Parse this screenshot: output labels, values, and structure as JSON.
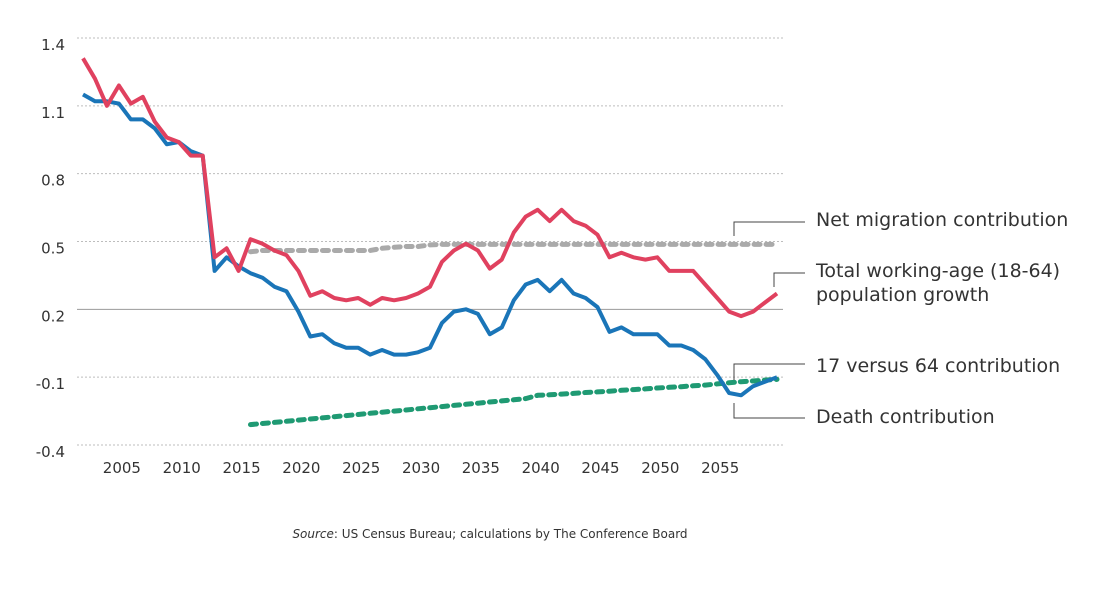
{
  "chart_data": {
    "type": "line",
    "title": "",
    "xlabel": "",
    "ylabel": "",
    "ylim": [
      -0.4,
      1.4
    ],
    "xlim": [
      2002,
      2060
    ],
    "yticks": [
      1.4,
      1.1,
      0.8,
      0.5,
      0.2,
      -0.1,
      -0.4
    ],
    "ytick_labels": [
      "1.4",
      "1.1",
      "0.8",
      "0.5",
      "0.2",
      "-0.1",
      "-0.4"
    ],
    "xticks": [
      2005,
      2010,
      2015,
      2020,
      2025,
      2030,
      2035,
      2040,
      2045,
      2050,
      2055
    ],
    "xtick_labels": [
      "2005",
      "2010",
      "2015",
      "2020",
      "2025",
      "2030",
      "2035",
      "2040",
      "2045",
      "2050",
      "2055"
    ],
    "grid": "horizontal dotted, solid at 0.2",
    "legend": "direct labels at right",
    "series": [
      {
        "name": "Total working-age (18-64) population growth",
        "color": "#e0415f",
        "style": "solid",
        "start_year": 2002,
        "values": [
          1.31,
          1.22,
          1.1,
          1.19,
          1.11,
          1.14,
          1.03,
          0.96,
          0.94,
          0.88,
          0.88,
          0.43,
          0.47,
          0.37,
          0.51,
          0.49,
          0.46,
          0.44,
          0.37,
          0.26,
          0.28,
          0.25,
          0.24,
          0.25,
          0.22,
          0.25,
          0.24,
          0.25,
          0.27,
          0.3,
          0.41,
          0.46,
          0.49,
          0.46,
          0.38,
          0.42,
          0.54,
          0.61,
          0.64,
          0.59,
          0.64,
          0.59,
          0.57,
          0.53,
          0.43,
          0.45,
          0.43,
          0.42,
          0.43,
          0.37,
          0.37,
          0.37,
          0.31,
          0.25,
          0.19,
          0.17,
          0.19,
          0.23,
          0.27
        ]
      },
      {
        "name": "Death contribution",
        "color": "#1a75b8",
        "style": "solid",
        "start_year": 2002,
        "values": [
          1.15,
          1.12,
          1.12,
          1.11,
          1.04,
          1.04,
          1.0,
          0.93,
          0.94,
          0.9,
          0.88,
          0.37,
          0.43,
          0.39,
          0.36,
          0.34,
          0.3,
          0.28,
          0.19,
          0.08,
          0.09,
          0.05,
          0.03,
          0.03,
          0.0,
          0.02,
          0.0,
          0.0,
          0.01,
          0.03,
          0.14,
          0.19,
          0.2,
          0.18,
          0.09,
          0.12,
          0.24,
          0.31,
          0.33,
          0.28,
          0.33,
          0.27,
          0.25,
          0.21,
          0.1,
          0.12,
          0.09,
          0.09,
          0.09,
          0.04,
          0.04,
          0.02,
          -0.02,
          -0.09,
          -0.17,
          -0.18,
          -0.14,
          -0.12,
          -0.1
        ]
      },
      {
        "name": "Net migration contribution",
        "color": "#aaaaaa",
        "style": "dashed",
        "start_year": 2016,
        "values": [
          0.455,
          0.46,
          0.46,
          0.46,
          0.46,
          0.46,
          0.46,
          0.46,
          0.46,
          0.46,
          0.46,
          0.47,
          0.475,
          0.478,
          0.478,
          0.485,
          0.487,
          0.487,
          0.487,
          0.487,
          0.487,
          0.487,
          0.487,
          0.487,
          0.487,
          0.487,
          0.487,
          0.487,
          0.487,
          0.487,
          0.487,
          0.487,
          0.487,
          0.487,
          0.487,
          0.487,
          0.487,
          0.487,
          0.487,
          0.487,
          0.487,
          0.487,
          0.487,
          0.487,
          0.487
        ]
      },
      {
        "name": "17 versus 64 contribution",
        "color": "#1f9a73",
        "style": "dashed",
        "start_year": 2016,
        "values": [
          -0.31,
          -0.305,
          -0.3,
          -0.295,
          -0.29,
          -0.285,
          -0.28,
          -0.275,
          -0.27,
          -0.265,
          -0.26,
          -0.255,
          -0.25,
          -0.245,
          -0.24,
          -0.235,
          -0.23,
          -0.225,
          -0.22,
          -0.215,
          -0.21,
          -0.205,
          -0.2,
          -0.195,
          -0.18,
          -0.178,
          -0.175,
          -0.172,
          -0.168,
          -0.165,
          -0.162,
          -0.158,
          -0.155,
          -0.152,
          -0.148,
          -0.145,
          -0.142,
          -0.138,
          -0.135,
          -0.13,
          -0.125,
          -0.12,
          -0.117,
          -0.113,
          -0.11
        ]
      }
    ],
    "annotations": [
      {
        "text": "Net migration contribution",
        "series": "Net migration contribution"
      },
      {
        "text_lines": [
          "Total working-age (18-64)",
          "population growth"
        ],
        "series": "Total working-age (18-64) population growth"
      },
      {
        "text": "17 versus 64 contribution",
        "series": "17 versus 64 contribution"
      },
      {
        "text": "Death contribution",
        "series": "Death contribution"
      }
    ],
    "source_label": "Source",
    "source_text": ": US Census Bureau; calculations by The Conference Board"
  }
}
